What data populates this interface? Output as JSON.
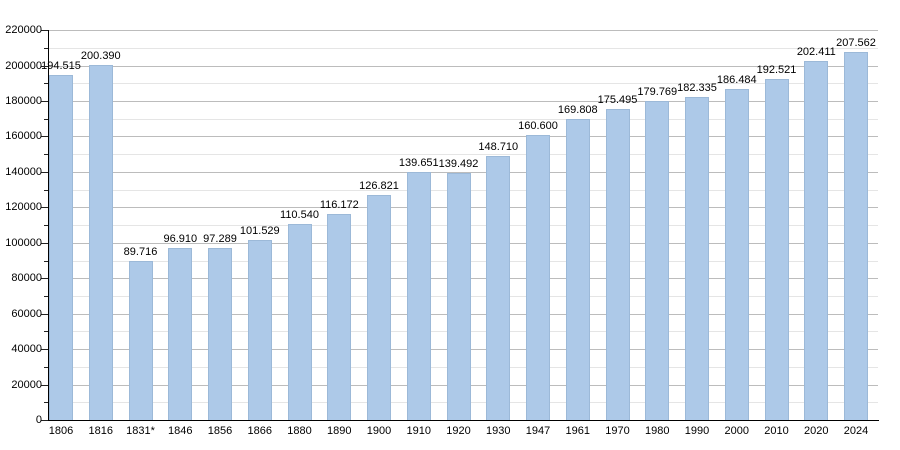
{
  "chart_data": {
    "type": "bar",
    "title": "",
    "xlabel": "",
    "ylabel": "",
    "categories": [
      "1806",
      "1816",
      "1831*",
      "1846",
      "1856",
      "1866",
      "1880",
      "1890",
      "1900",
      "1910",
      "1920",
      "1930",
      "1947",
      "1961",
      "1970",
      "1980",
      "1990",
      "2000",
      "2010",
      "2020",
      "2024"
    ],
    "values": [
      194515,
      200390,
      89716,
      96910,
      97289,
      101529,
      110540,
      116172,
      126821,
      139651,
      139492,
      148710,
      160600,
      169808,
      175495,
      179769,
      182335,
      186484,
      192521,
      202411,
      207562
    ],
    "value_labels": [
      "194.515",
      "200.390",
      "89.716",
      "96.910",
      "97.289",
      "101.529",
      "110.540",
      "116.172",
      "126.821",
      "139.651",
      "139.492",
      "148.710",
      "160.600",
      "169.808",
      "175.495",
      "179.769",
      "182.335",
      "186.484",
      "192.521",
      "202.411",
      "207.562"
    ],
    "ylim": [
      0,
      220000
    ],
    "y_major_step": 20000,
    "y_minor_step": 10000,
    "y_tick_labels": [
      "0",
      "20000",
      "40000",
      "60000",
      "80000",
      "100000",
      "120000",
      "140000",
      "160000",
      "180000",
      "200000",
      "220000"
    ],
    "grid": "on",
    "legend": "none",
    "colors": {
      "bar_fill": "#adc9e8",
      "bar_border": "#9cb9d8",
      "major_grid": "#bcbcbc",
      "minor_grid": "#e5e5e5",
      "axis": "#000000",
      "text": "#000000",
      "background": "#ffffff"
    }
  }
}
